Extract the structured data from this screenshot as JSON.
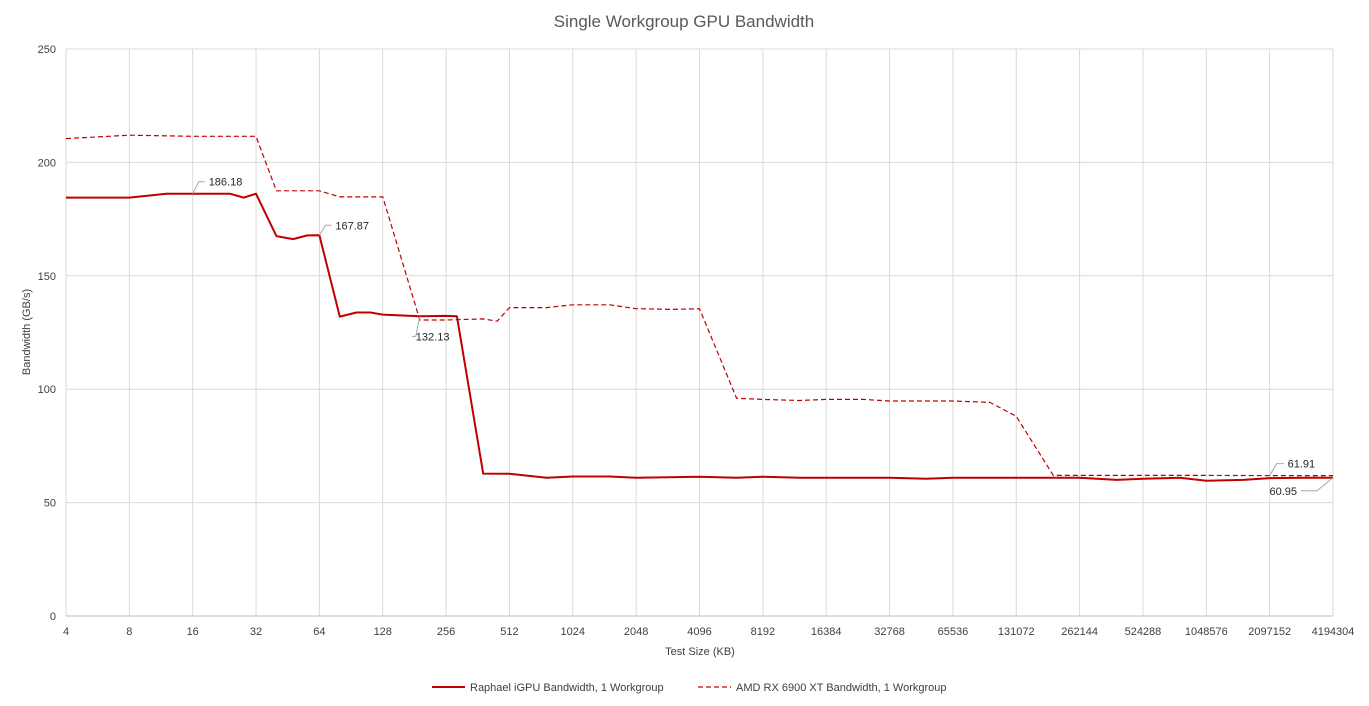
{
  "chart_data": {
    "type": "line",
    "title": "Single Workgroup GPU Bandwidth",
    "xlabel": "Test Size (KB)",
    "ylabel": "Bandwidth (GB/s)",
    "ylim": [
      0,
      250
    ],
    "yticks": [
      0,
      50,
      100,
      150,
      200,
      250
    ],
    "x_tick_labels": [
      "4",
      "8",
      "16",
      "32",
      "64",
      "128",
      "256",
      "512",
      "1024",
      "2048",
      "4096",
      "8192",
      "16384",
      "32768",
      "65536",
      "131072",
      "262144",
      "524288",
      "1048576",
      "2097152",
      "4194304"
    ],
    "x_scale": "log2",
    "grid": true,
    "legend_position": "bottom",
    "series": [
      {
        "name": "Raphael iGPU Bandwidth, 1 Workgroup",
        "style": "solid",
        "color": "#c00000",
        "points": [
          [
            4,
            184.5
          ],
          [
            8,
            184.5
          ],
          [
            12,
            186.2
          ],
          [
            16,
            186.18
          ],
          [
            24,
            186.2
          ],
          [
            28,
            184.5
          ],
          [
            32,
            186.2
          ],
          [
            40,
            167.5
          ],
          [
            48,
            166.2
          ],
          [
            56,
            167.8
          ],
          [
            64,
            167.87
          ],
          [
            80,
            132.0
          ],
          [
            96,
            133.8
          ],
          [
            112,
            133.8
          ],
          [
            128,
            132.9
          ],
          [
            192,
            132.13
          ],
          [
            256,
            132.3
          ],
          [
            288,
            132.2
          ],
          [
            384,
            62.8
          ],
          [
            512,
            62.7
          ],
          [
            768,
            61.0
          ],
          [
            1024,
            61.5
          ],
          [
            1536,
            61.5
          ],
          [
            2048,
            61.0
          ],
          [
            4096,
            61.4
          ],
          [
            6144,
            61.0
          ],
          [
            8192,
            61.4
          ],
          [
            12288,
            61.0
          ],
          [
            16384,
            61.0
          ],
          [
            32768,
            61.0
          ],
          [
            49152,
            60.5
          ],
          [
            65536,
            61.0
          ],
          [
            131072,
            61.0
          ],
          [
            262144,
            61.0
          ],
          [
            393216,
            60.0
          ],
          [
            524288,
            60.5
          ],
          [
            786432,
            61.0
          ],
          [
            1048576,
            59.6
          ],
          [
            1572864,
            60.0
          ],
          [
            2097152,
            60.8
          ],
          [
            3145728,
            61.0
          ],
          [
            4194304,
            60.95
          ]
        ]
      },
      {
        "name": "AMD RX 6900 XT Bandwidth, 1 Workgroup",
        "style": "dashed",
        "color": "#c00000",
        "points": [
          [
            4,
            210.5
          ],
          [
            8,
            212.0
          ],
          [
            16,
            211.5
          ],
          [
            32,
            211.5
          ],
          [
            40,
            187.5
          ],
          [
            48,
            187.5
          ],
          [
            64,
            187.5
          ],
          [
            80,
            184.8
          ],
          [
            96,
            184.8
          ],
          [
            128,
            184.8
          ],
          [
            192,
            130.5
          ],
          [
            256,
            130.5
          ],
          [
            384,
            131.0
          ],
          [
            448,
            130.0
          ],
          [
            512,
            136.0
          ],
          [
            768,
            136.0
          ],
          [
            1024,
            137.2
          ],
          [
            1536,
            137.2
          ],
          [
            2048,
            135.5
          ],
          [
            3072,
            135.2
          ],
          [
            4096,
            135.5
          ],
          [
            6144,
            96.0
          ],
          [
            8192,
            95.5
          ],
          [
            12288,
            95.0
          ],
          [
            16384,
            95.5
          ],
          [
            24576,
            95.5
          ],
          [
            32768,
            94.8
          ],
          [
            49152,
            94.8
          ],
          [
            65536,
            94.8
          ],
          [
            98304,
            94.2
          ],
          [
            131072,
            88.0
          ],
          [
            196608,
            62.0
          ],
          [
            262144,
            62.0
          ],
          [
            524288,
            62.0
          ],
          [
            1048576,
            62.0
          ],
          [
            2097152,
            61.91
          ],
          [
            4194304,
            61.91
          ]
        ]
      }
    ],
    "annotations": [
      {
        "text": "186.18",
        "x": 16,
        "y": 186.18,
        "series": 0
      },
      {
        "text": "167.87",
        "x": 64,
        "y": 167.87,
        "series": 0
      },
      {
        "text": "132.13",
        "x": 192,
        "y": 132.13,
        "series": 0
      },
      {
        "text": "61.91",
        "x": 2097152,
        "y": 61.91,
        "series": 1
      },
      {
        "text": "60.95",
        "x": 4194304,
        "y": 60.95,
        "series": 0
      }
    ]
  }
}
